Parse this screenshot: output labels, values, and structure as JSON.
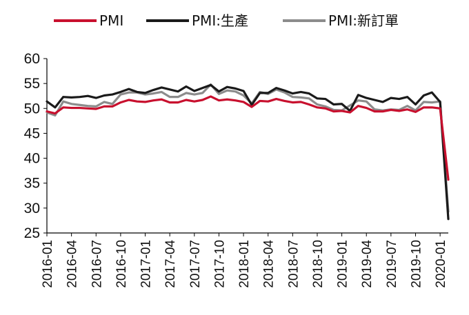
{
  "chart_data": {
    "type": "line",
    "title": "",
    "xlabel": "",
    "ylabel": "",
    "ylim": [
      25,
      60
    ],
    "yticks": [
      25,
      30,
      35,
      40,
      45,
      50,
      55,
      60
    ],
    "grid": false,
    "legend_position": "top",
    "x": [
      "2016-01",
      "2016-02",
      "2016-03",
      "2016-04",
      "2016-05",
      "2016-06",
      "2016-07",
      "2016-08",
      "2016-09",
      "2016-10",
      "2016-11",
      "2016-12",
      "2017-01",
      "2017-02",
      "2017-03",
      "2017-04",
      "2017-05",
      "2017-06",
      "2017-07",
      "2017-08",
      "2017-09",
      "2017-10",
      "2017-11",
      "2017-12",
      "2018-01",
      "2018-02",
      "2018-03",
      "2018-04",
      "2018-05",
      "2018-06",
      "2018-07",
      "2018-08",
      "2018-09",
      "2018-10",
      "2018-11",
      "2018-12",
      "2019-01",
      "2019-02",
      "2019-03",
      "2019-04",
      "2019-05",
      "2019-06",
      "2019-07",
      "2019-08",
      "2019-09",
      "2019-10",
      "2019-11",
      "2019-12",
      "2020-01",
      "2020-02"
    ],
    "xtick_labels": [
      "2016-01",
      "2016-04",
      "2016-07",
      "2016-10",
      "2017-01",
      "2017-04",
      "2017-07",
      "2017-10",
      "2018-01",
      "2018-04",
      "2018-07",
      "2018-10",
      "2019-01",
      "2019-04",
      "2019-07",
      "2019-10",
      "2020-01"
    ],
    "series": [
      {
        "name": "PMI",
        "color": "#c8102e",
        "values": [
          49.4,
          49.0,
          50.2,
          50.1,
          50.1,
          50.0,
          49.9,
          50.4,
          50.4,
          51.2,
          51.7,
          51.4,
          51.3,
          51.6,
          51.8,
          51.2,
          51.2,
          51.7,
          51.4,
          51.7,
          52.4,
          51.6,
          51.8,
          51.6,
          51.3,
          50.3,
          51.5,
          51.4,
          51.9,
          51.5,
          51.2,
          51.3,
          50.8,
          50.2,
          50.0,
          49.4,
          49.5,
          49.2,
          50.5,
          50.1,
          49.4,
          49.4,
          49.7,
          49.5,
          49.8,
          49.3,
          50.2,
          50.2,
          50.0,
          35.7
        ]
      },
      {
        "name": "PMI:生產",
        "color": "#1a1a1a",
        "values": [
          51.4,
          50.2,
          52.3,
          52.2,
          52.3,
          52.5,
          52.1,
          52.6,
          52.8,
          53.3,
          53.9,
          53.3,
          53.1,
          53.7,
          54.2,
          53.8,
          53.4,
          54.4,
          53.5,
          54.1,
          54.7,
          53.4,
          54.3,
          54.0,
          53.5,
          50.7,
          53.1,
          53.1,
          54.1,
          53.6,
          53.0,
          53.3,
          53.0,
          52.0,
          51.9,
          50.8,
          50.9,
          49.5,
          52.7,
          52.1,
          51.7,
          51.3,
          52.1,
          51.9,
          52.3,
          50.8,
          52.6,
          53.2,
          51.3,
          27.8
        ]
      },
      {
        "name": "PMI:新訂單",
        "color": "#8c8c8c",
        "values": [
          49.2,
          48.6,
          51.4,
          50.9,
          50.7,
          50.5,
          50.4,
          51.3,
          50.9,
          52.8,
          53.2,
          53.2,
          52.8,
          53.0,
          53.3,
          52.3,
          52.3,
          53.1,
          52.8,
          53.1,
          54.8,
          52.9,
          53.6,
          53.4,
          52.6,
          51.0,
          53.3,
          52.9,
          53.8,
          53.2,
          52.3,
          52.2,
          52.0,
          50.8,
          50.4,
          49.7,
          49.6,
          50.6,
          51.6,
          51.4,
          49.8,
          49.6,
          49.8,
          49.7,
          50.5,
          49.6,
          51.3,
          51.2,
          51.4,
          29.3
        ]
      }
    ]
  }
}
